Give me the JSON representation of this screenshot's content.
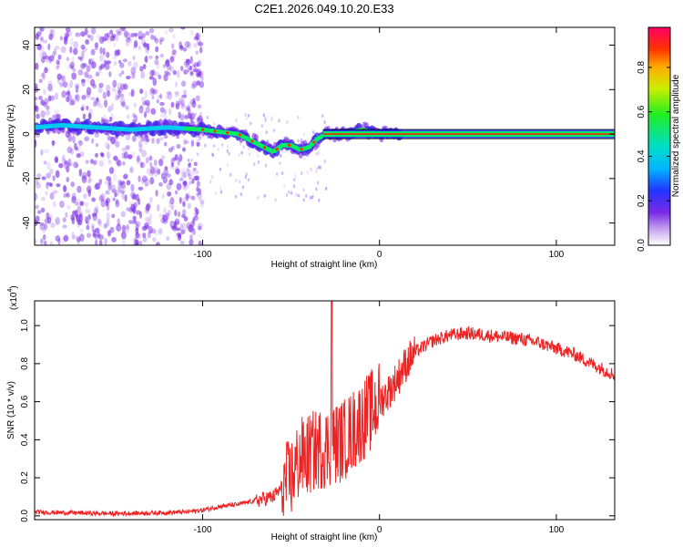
{
  "figure_title": "C2E1.2026.049.10.20.E33",
  "colors": {
    "snr_line": "#ee2222",
    "spectrum_track": "#00ee66",
    "scatter": "#7a2be6",
    "black": "#000000"
  },
  "chart_data": [
    {
      "type": "heatmap",
      "name": "spectrogram",
      "xlabel": "Height of straight line (km)",
      "ylabel": "Frequency (Hz)",
      "xlim": [
        -195,
        133
      ],
      "ylim": [
        -50,
        48
      ],
      "xticks": [
        -100,
        0,
        100
      ],
      "xtick_labels": [
        "-100",
        "0",
        "100"
      ],
      "yticks": [
        -40,
        -20,
        0,
        20,
        40
      ],
      "ytick_labels": [
        "-40",
        "-20",
        "0",
        "20",
        "40"
      ],
      "track": {
        "x": [
          -195,
          -180,
          -160,
          -140,
          -120,
          -100,
          -90,
          -80,
          -70,
          -60,
          -55,
          -50,
          -45,
          -40,
          -35,
          -30,
          -25,
          -20,
          -15,
          -10,
          -5,
          0,
          10,
          30,
          60,
          90,
          133
        ],
        "y": [
          3,
          4,
          3,
          2,
          3,
          2,
          1,
          0,
          -4,
          -8,
          -5,
          -5,
          -7,
          -6,
          -2,
          0,
          0,
          0,
          1,
          2,
          1,
          0,
          0,
          0,
          0,
          0,
          0
        ]
      },
      "colorbar": {
        "label": "Normalized spectral amplitude",
        "ticks": [
          0.0,
          0.2,
          0.4,
          0.6,
          0.8
        ],
        "tick_labels": [
          "0.0",
          "0.2",
          "0.4",
          "0.6",
          "0.8"
        ],
        "range": [
          0,
          0.98
        ]
      }
    },
    {
      "type": "line",
      "name": "snr",
      "xlabel": "Height of straight line (km)",
      "ylabel": "SNR (10 * v/v)",
      "y_multiplier_label": "(x10",
      "y_multiplier_exp": "4",
      "xlim": [
        -195,
        133
      ],
      "ylim": [
        -0.02,
        1.13
      ],
      "xticks": [
        -100,
        0,
        100
      ],
      "xtick_labels": [
        "-100",
        "0",
        "100"
      ],
      "yticks": [
        0.0,
        0.2,
        0.4,
        0.6,
        0.8,
        1.0
      ],
      "ytick_labels": [
        "0.0",
        "0.2",
        "0.4",
        "0.6",
        "0.8",
        "1.0"
      ],
      "series_shape": {
        "x": [
          -195,
          -170,
          -150,
          -130,
          -110,
          -100,
          -90,
          -80,
          -70,
          -60,
          -50,
          -45,
          -40,
          -35,
          -30,
          -25,
          -20,
          -15,
          -10,
          -5,
          0,
          5,
          10,
          15,
          20,
          30,
          40,
          50,
          60,
          70,
          80,
          90,
          100,
          110,
          120,
          133
        ],
        "y": [
          0.02,
          0.015,
          0.012,
          0.015,
          0.02,
          0.03,
          0.05,
          0.06,
          0.08,
          0.1,
          0.2,
          0.3,
          0.32,
          0.35,
          0.36,
          0.38,
          0.4,
          0.45,
          0.5,
          0.55,
          0.6,
          0.65,
          0.72,
          0.8,
          0.86,
          0.92,
          0.95,
          0.96,
          0.95,
          0.94,
          0.93,
          0.91,
          0.88,
          0.85,
          0.8,
          0.74
        ]
      },
      "spike": {
        "x": -27,
        "y": 1.13
      }
    }
  ]
}
